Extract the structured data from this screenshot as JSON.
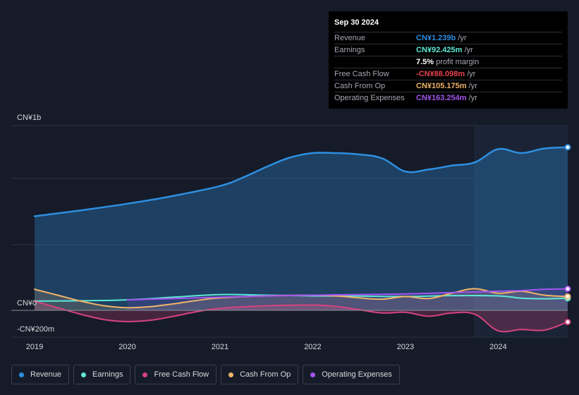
{
  "tooltip": {
    "date": "Sep 30 2024",
    "rows": [
      {
        "label": "Revenue",
        "value": "CN¥1.239b",
        "unit": "/yr",
        "color": "#2e8fe0"
      },
      {
        "label": "Earnings",
        "value": "CN¥92.425m",
        "unit": "/yr",
        "color": "#5ee8d5"
      },
      {
        "label": "",
        "value": "7.5%",
        "unit": "profit margin",
        "color": "#ffffff"
      },
      {
        "label": "Free Cash Flow",
        "value": "-CN¥88.098m",
        "unit": "/yr",
        "color": "#e8414f"
      },
      {
        "label": "Cash From Op",
        "value": "CN¥105.175m",
        "unit": "/yr",
        "color": "#f0b46a"
      },
      {
        "label": "Operating Expenses",
        "value": "CN¥163.254m",
        "unit": "/yr",
        "color": "#a455f0"
      }
    ]
  },
  "legend": [
    {
      "label": "Revenue",
      "color": "#2e8fe0"
    },
    {
      "label": "Earnings",
      "color": "#5ee8d5"
    },
    {
      "label": "Free Cash Flow",
      "color": "#d6437f"
    },
    {
      "label": "Cash From Op",
      "color": "#f0b46a"
    },
    {
      "label": "Operating Expenses",
      "color": "#a455f0"
    }
  ],
  "chart_data": {
    "type": "line",
    "title": "",
    "xlabel": "",
    "ylabel": "",
    "y_tick_labels": {
      "top": "CN¥1b",
      "zero": "CN¥0",
      "bottom": "-CN¥200m"
    },
    "x_tick_labels": [
      "2019",
      "2020",
      "2021",
      "2022",
      "2023",
      "2024"
    ],
    "x_ticks": [
      2019,
      2020,
      2021,
      2022,
      2023,
      2024
    ],
    "xlim": [
      2019,
      2024.75
    ],
    "ylim": [
      -200,
      1400
    ],
    "highlight_from": 2023.75,
    "series": [
      {
        "name": "Revenue",
        "color": "#2e8fe0",
        "fill": true,
        "x": [
          2019,
          2019.5,
          2020,
          2020.5,
          2021,
          2021.25,
          2021.5,
          2021.75,
          2022,
          2022.25,
          2022.5,
          2022.75,
          2023,
          2023.25,
          2023.5,
          2023.75,
          2024,
          2024.25,
          2024.5,
          2024.75
        ],
        "y": [
          715,
          760,
          810,
          870,
          945,
          1010,
          1090,
          1160,
          1195,
          1195,
          1185,
          1155,
          1055,
          1070,
          1100,
          1125,
          1225,
          1195,
          1230,
          1239
        ]
      },
      {
        "name": "Earnings",
        "color": "#5ee8d5",
        "fill": false,
        "x": [
          2019,
          2019.5,
          2020,
          2020.5,
          2021,
          2021.5,
          2022,
          2022.5,
          2023,
          2023.5,
          2024,
          2024.25,
          2024.5,
          2024.75
        ],
        "y": [
          70,
          73,
          80,
          100,
          120,
          115,
          110,
          108,
          105,
          112,
          110,
          92,
          88,
          92.4
        ]
      },
      {
        "name": "Free Cash Flow",
        "color": "#d6437f",
        "fill": true,
        "x": [
          2019,
          2019.25,
          2019.5,
          2019.75,
          2020,
          2020.25,
          2020.5,
          2020.75,
          2021,
          2021.5,
          2022,
          2022.25,
          2022.5,
          2022.75,
          2023,
          2023.25,
          2023.5,
          2023.75,
          2024,
          2024.25,
          2024.5,
          2024.75
        ],
        "y": [
          70,
          20,
          -30,
          -70,
          -85,
          -75,
          -45,
          -10,
          15,
          35,
          40,
          30,
          5,
          -20,
          -15,
          -45,
          -20,
          -30,
          -155,
          -145,
          -150,
          -88.1
        ]
      },
      {
        "name": "Cash From Op",
        "color": "#f0b46a",
        "fill": true,
        "x": [
          2019,
          2019.25,
          2019.5,
          2019.75,
          2020,
          2020.25,
          2020.5,
          2020.75,
          2021,
          2021.5,
          2022,
          2022.25,
          2022.5,
          2022.75,
          2023,
          2023.25,
          2023.5,
          2023.75,
          2024,
          2024.25,
          2024.5,
          2024.75
        ],
        "y": [
          160,
          115,
          70,
          35,
          20,
          28,
          50,
          75,
          95,
          110,
          115,
          110,
          95,
          85,
          105,
          90,
          130,
          165,
          130,
          145,
          115,
          105.2
        ]
      },
      {
        "name": "Operating Expenses",
        "color": "#a455f0",
        "fill": true,
        "x": [
          2020,
          2020.5,
          2021,
          2021.5,
          2022,
          2022.5,
          2023,
          2023.5,
          2024,
          2024.25,
          2024.5,
          2024.75
        ],
        "y": [
          80,
          90,
          100,
          110,
          115,
          120,
          125,
          135,
          145,
          150,
          160,
          163.3
        ]
      }
    ]
  }
}
